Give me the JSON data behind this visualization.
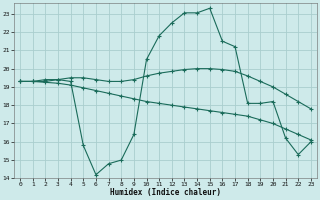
{
  "xlabel": "Humidex (Indice chaleur)",
  "bg_color": "#ceeaea",
  "grid_color": "#aacece",
  "line_color": "#1a6b5a",
  "xlim": [
    -0.5,
    23.5
  ],
  "ylim": [
    14,
    23.6
  ],
  "yticks": [
    14,
    15,
    16,
    17,
    18,
    19,
    20,
    21,
    22,
    23
  ],
  "xticks": [
    0,
    1,
    2,
    3,
    4,
    5,
    6,
    7,
    8,
    9,
    10,
    11,
    12,
    13,
    14,
    15,
    16,
    17,
    18,
    19,
    20,
    21,
    22,
    23
  ],
  "line1_x": [
    0,
    1,
    2,
    3,
    4,
    5,
    6,
    7,
    8,
    9,
    10,
    11,
    12,
    13,
    14,
    15,
    16,
    17,
    18,
    19,
    20,
    21,
    22,
    23
  ],
  "line1_y": [
    19.3,
    19.3,
    19.4,
    19.4,
    19.3,
    15.8,
    14.2,
    14.8,
    15.0,
    16.4,
    20.5,
    21.8,
    22.5,
    23.05,
    23.05,
    23.3,
    21.5,
    21.2,
    18.1,
    18.1,
    18.2,
    16.2,
    15.3,
    16.0
  ],
  "line2_x": [
    0,
    1,
    2,
    3,
    4,
    5,
    6,
    7,
    8,
    9,
    10,
    11,
    12,
    13,
    14,
    15,
    16,
    17,
    18,
    19,
    20,
    21,
    22,
    23
  ],
  "line2_y": [
    19.3,
    19.3,
    19.3,
    19.4,
    19.5,
    19.5,
    19.4,
    19.3,
    19.3,
    19.4,
    19.6,
    19.75,
    19.85,
    19.95,
    20.0,
    20.0,
    19.95,
    19.85,
    19.6,
    19.3,
    19.0,
    18.6,
    18.2,
    17.8
  ],
  "line3_x": [
    0,
    1,
    2,
    3,
    4,
    5,
    6,
    7,
    8,
    9,
    10,
    11,
    12,
    13,
    14,
    15,
    16,
    17,
    18,
    19,
    20,
    21,
    22,
    23
  ],
  "line3_y": [
    19.3,
    19.3,
    19.25,
    19.2,
    19.1,
    18.95,
    18.8,
    18.65,
    18.5,
    18.35,
    18.2,
    18.1,
    18.0,
    17.9,
    17.8,
    17.7,
    17.6,
    17.5,
    17.4,
    17.2,
    17.0,
    16.7,
    16.4,
    16.1
  ]
}
